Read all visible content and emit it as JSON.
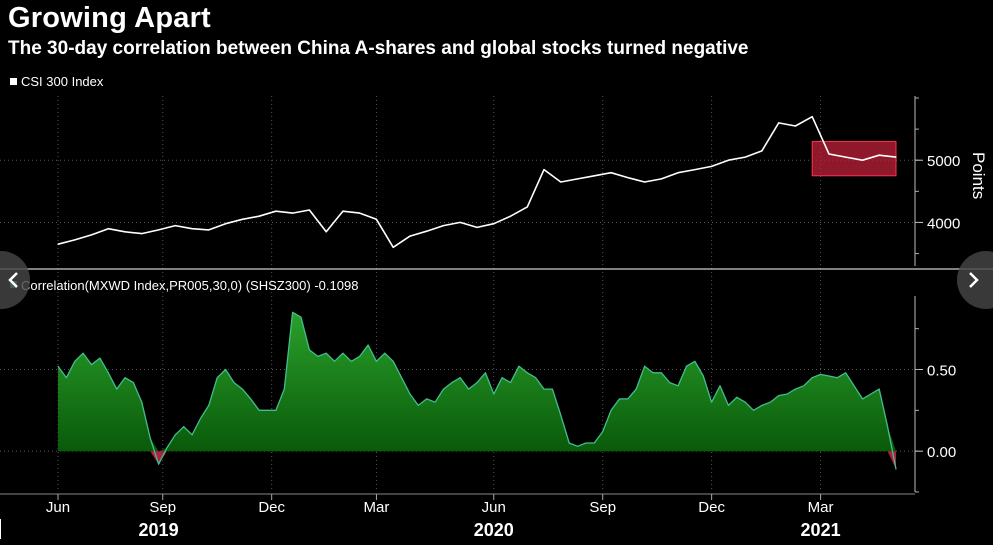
{
  "title": "Growing Apart",
  "subtitle": "The 30-day correlation between China A-shares and global stocks turned negative",
  "colors": {
    "background": "#000000",
    "csi_line": "#ffffff",
    "corr_fill": "#1a8a1a",
    "corr_line": "#3fbf8f",
    "negative_fill": "#b02040",
    "highlight": "#c0203a",
    "grid": "#555555"
  },
  "icons": {
    "prev": "chevron-left-icon",
    "next": "chevron-right-icon"
  },
  "chart_data": [
    {
      "type": "line",
      "legend": "CSI 300 Index",
      "ylabel": "Points",
      "ylim": [
        3300,
        6000
      ],
      "yticks": [
        {
          "value": 4000,
          "label": "4000"
        },
        {
          "value": 5000,
          "label": "5000"
        }
      ],
      "x": [
        0,
        2,
        4,
        6,
        8,
        10,
        12,
        14,
        16,
        18,
        20,
        22,
        24,
        26,
        28,
        30,
        32,
        34,
        36,
        38,
        40,
        42,
        44,
        46,
        48,
        50,
        52,
        54,
        56,
        58,
        60,
        62,
        64,
        66,
        68,
        70,
        72,
        74,
        76,
        78,
        80,
        82,
        84,
        86,
        88,
        90,
        92,
        94,
        96,
        98,
        100
      ],
      "values": [
        3650,
        3720,
        3800,
        3900,
        3850,
        3820,
        3880,
        3950,
        3900,
        3880,
        3980,
        4050,
        4100,
        4180,
        4150,
        4200,
        3850,
        4180,
        4150,
        4050,
        3600,
        3780,
        3860,
        3950,
        4000,
        3920,
        3980,
        4100,
        4250,
        4850,
        4650,
        4700,
        4750,
        4800,
        4720,
        4650,
        4700,
        4800,
        4850,
        4900,
        5000,
        5050,
        5150,
        5600,
        5550,
        5700,
        5100,
        5050,
        5000,
        5080,
        5050
      ],
      "highlight_range": {
        "x_from": 90,
        "x_to": 100,
        "y_from": 4750,
        "y_to": 5300
      }
    },
    {
      "type": "area",
      "legend": "Correlation(MXWD Index,PR005,30,0) (SHSZ300) -0.1098",
      "ylim": [
        -0.25,
        0.95
      ],
      "yticks": [
        {
          "value": 0.5,
          "label": "0.50"
        },
        {
          "value": 0.0,
          "label": "0.00"
        }
      ],
      "x": [
        0,
        1,
        2,
        3,
        4,
        5,
        6,
        7,
        8,
        9,
        10,
        11,
        12,
        13,
        14,
        15,
        16,
        17,
        18,
        19,
        20,
        21,
        22,
        23,
        24,
        25,
        26,
        27,
        28,
        29,
        30,
        31,
        32,
        33,
        34,
        35,
        36,
        37,
        38,
        39,
        40,
        41,
        42,
        43,
        44,
        45,
        46,
        47,
        48,
        49,
        50,
        51,
        52,
        53,
        54,
        55,
        56,
        57,
        58,
        59,
        60,
        61,
        62,
        63,
        64,
        65,
        66,
        67,
        68,
        69,
        70,
        71,
        72,
        73,
        74,
        75,
        76,
        77,
        78,
        79,
        80,
        81,
        82,
        83,
        84,
        85,
        86,
        87,
        88,
        89,
        90,
        91,
        92,
        93,
        94,
        95,
        96,
        97,
        98,
        99,
        100
      ],
      "values": [
        0.52,
        0.45,
        0.55,
        0.6,
        0.53,
        0.57,
        0.48,
        0.38,
        0.45,
        0.42,
        0.3,
        0.08,
        -0.08,
        0.02,
        0.1,
        0.15,
        0.1,
        0.2,
        0.28,
        0.45,
        0.5,
        0.42,
        0.38,
        0.32,
        0.25,
        0.25,
        0.25,
        0.38,
        0.85,
        0.82,
        0.62,
        0.58,
        0.6,
        0.55,
        0.6,
        0.55,
        0.58,
        0.65,
        0.55,
        0.6,
        0.55,
        0.45,
        0.35,
        0.28,
        0.32,
        0.3,
        0.38,
        0.42,
        0.45,
        0.38,
        0.42,
        0.48,
        0.35,
        0.45,
        0.42,
        0.52,
        0.48,
        0.45,
        0.38,
        0.38,
        0.22,
        0.05,
        0.03,
        0.05,
        0.05,
        0.12,
        0.25,
        0.32,
        0.32,
        0.38,
        0.52,
        0.48,
        0.48,
        0.42,
        0.4,
        0.52,
        0.55,
        0.46,
        0.3,
        0.4,
        0.28,
        0.33,
        0.3,
        0.25,
        0.28,
        0.3,
        0.34,
        0.35,
        0.38,
        0.4,
        0.45,
        0.47,
        0.46,
        0.45,
        0.48,
        0.4,
        0.32,
        0.35,
        0.38,
        0.15,
        -0.11
      ]
    }
  ],
  "x_axis": {
    "months": [
      {
        "label": "Jun",
        "x": 0
      },
      {
        "label": "Sep",
        "x": 12.5
      },
      {
        "label": "Dec",
        "x": 25.5
      },
      {
        "label": "Mar",
        "x": 38
      },
      {
        "label": "Jun",
        "x": 52
      },
      {
        "label": "Sep",
        "x": 65
      },
      {
        "label": "Dec",
        "x": 78
      },
      {
        "label": "Mar",
        "x": 91
      }
    ],
    "years": [
      {
        "label": "2019",
        "x": 12
      },
      {
        "label": "2020",
        "x": 52
      },
      {
        "label": "2021",
        "x": 91
      }
    ]
  }
}
